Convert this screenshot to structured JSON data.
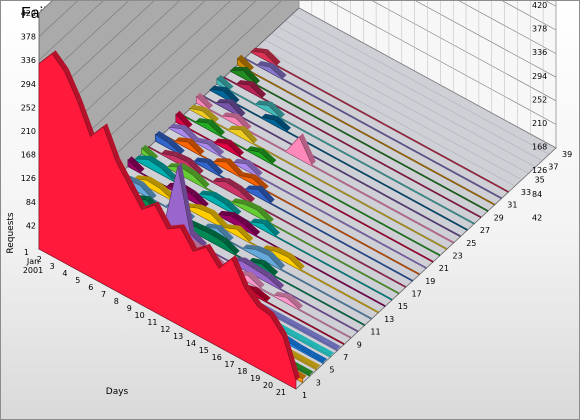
{
  "chart_data": {
    "type": "area",
    "title": "Failed URLs History",
    "xlabel": "Days",
    "ylabel": "Requests",
    "zlabel": "",
    "x_categories": [
      "1",
      "2",
      "3",
      "4",
      "5",
      "6",
      "7",
      "8",
      "9",
      "10",
      "11",
      "12",
      "13",
      "14",
      "15",
      "16",
      "17",
      "18",
      "19",
      "20",
      "21"
    ],
    "x_first_sublabels": [
      "Jan",
      "2001"
    ],
    "z_tick_labels": [
      "1",
      "3",
      "5",
      "7",
      "9",
      "11",
      "13",
      "15",
      "17",
      "19",
      "21",
      "23",
      "25",
      "27",
      "29",
      "31",
      "33",
      "35",
      "37",
      "39"
    ],
    "y_ticks": [
      42,
      84,
      126,
      168,
      210,
      252,
      294,
      336,
      378,
      420
    ],
    "ylim": [
      0,
      420
    ],
    "grid": true,
    "series_count": 39,
    "series": [
      {
        "values": [
          330,
          360,
          340,
          300,
          250,
          280,
          230,
          200,
          170,
          190,
          160,
          175,
          145,
          165,
          140,
          170,
          130,
          110,
          105,
          80,
          15
        ],
        "color": "#ff1a3c"
      },
      {
        "values": [
          24,
          22,
          20,
          19,
          18,
          17,
          16,
          15,
          14,
          13,
          12,
          12,
          11,
          10,
          10,
          9,
          9,
          8,
          8,
          7,
          6
        ],
        "color": "#ff9900"
      },
      {
        "values": [
          200,
          60,
          20,
          10,
          8,
          6,
          5,
          4,
          3,
          3,
          2,
          2,
          2,
          1,
          1,
          1,
          1,
          1,
          1,
          1,
          1
        ],
        "color": "#33b233"
      },
      {
        "values": [
          220,
          80,
          25,
          12,
          10,
          9,
          8,
          7,
          6,
          5,
          4,
          3,
          3,
          3,
          2,
          2,
          2,
          2,
          1,
          1,
          1
        ],
        "color": "#ffd21a"
      },
      {
        "values": [
          170,
          90,
          30,
          20,
          16,
          15,
          30,
          12,
          20,
          10,
          25,
          8,
          6,
          5,
          30,
          10,
          8,
          5,
          3,
          2,
          2
        ],
        "color": "#1a8cff"
      },
      {
        "values": [
          160,
          70,
          20,
          8,
          6,
          5,
          4,
          4,
          3,
          3,
          2,
          2,
          2,
          2,
          1,
          1,
          1,
          1,
          1,
          1,
          1
        ],
        "color": "#33ffff"
      },
      {
        "values": [
          150,
          30,
          8,
          4,
          3,
          3,
          2,
          2,
          2,
          1,
          1,
          1,
          1,
          1,
          1,
          1,
          1,
          1,
          1,
          1,
          1
        ],
        "color": "#9999ff"
      },
      {
        "values": [
          0,
          14,
          12,
          0,
          10,
          12,
          10,
          8,
          0,
          0,
          12,
          10,
          0,
          8,
          0,
          0,
          0,
          0,
          0,
          0,
          0
        ],
        "color": "#cc0033"
      },
      {
        "values": [
          0,
          0,
          12,
          12,
          10,
          0,
          0,
          14,
          12,
          10,
          0,
          0,
          12,
          0,
          0,
          10,
          0,
          0,
          0,
          0,
          0
        ],
        "color": "#ff99cc"
      },
      {
        "values": [
          12,
          14,
          0,
          0,
          12,
          10,
          120,
          12,
          0,
          0,
          0,
          14,
          12,
          10,
          0,
          0,
          0,
          0,
          0,
          0,
          0
        ],
        "color": "#9966cc"
      },
      {
        "values": [
          14,
          0,
          0,
          12,
          0,
          0,
          10,
          12,
          14,
          12,
          0,
          0,
          10,
          0,
          0,
          0,
          0,
          0,
          0,
          0,
          0
        ],
        "color": "#008855"
      },
      {
        "values": [
          0,
          12,
          14,
          0,
          0,
          10,
          0,
          0,
          12,
          0,
          0,
          12,
          14,
          0,
          0,
          0,
          0,
          0,
          0,
          0,
          0
        ],
        "color": "#66aadd"
      },
      {
        "values": [
          0,
          0,
          12,
          10,
          0,
          0,
          12,
          14,
          0,
          12,
          0,
          0,
          10,
          12,
          0,
          0,
          0,
          0,
          0,
          0,
          0
        ],
        "color": "#ffcc00"
      },
      {
        "values": [
          12,
          0,
          0,
          0,
          14,
          12,
          0,
          0,
          12,
          10,
          0,
          0,
          0,
          0,
          0,
          0,
          0,
          0,
          0,
          0,
          0
        ],
        "color": "#990066"
      },
      {
        "values": [
          0,
          14,
          12,
          0,
          0,
          0,
          12,
          10,
          0,
          0,
          12,
          0,
          0,
          0,
          0,
          0,
          0,
          0,
          0,
          0,
          0
        ],
        "color": "#00b0b0"
      },
      {
        "values": [
          10,
          0,
          0,
          14,
          12,
          0,
          0,
          0,
          10,
          12,
          0,
          0,
          0,
          0,
          0,
          0,
          0,
          0,
          0,
          0,
          0
        ],
        "color": "#66cc33"
      },
      {
        "values": [
          0,
          0,
          10,
          12,
          0,
          0,
          14,
          12,
          0,
          0,
          0,
          0,
          0,
          0,
          0,
          0,
          0,
          0,
          0,
          0,
          0
        ],
        "color": "#cc3366"
      },
      {
        "values": [
          12,
          10,
          0,
          0,
          12,
          0,
          0,
          0,
          14,
          0,
          0,
          0,
          0,
          0,
          0,
          0,
          0,
          0,
          0,
          0,
          0
        ],
        "color": "#3366cc"
      },
      {
        "values": [
          0,
          0,
          12,
          0,
          0,
          14,
          0,
          10,
          0,
          0,
          0,
          0,
          0,
          0,
          0,
          0,
          0,
          0,
          0,
          0,
          0
        ],
        "color": "#ff6600"
      },
      {
        "values": [
          0,
          12,
          0,
          10,
          0,
          0,
          12,
          0,
          0,
          0,
          0,
          0,
          0,
          0,
          0,
          0,
          0,
          0,
          0,
          0,
          0
        ],
        "color": "#aa88ee"
      },
      {
        "values": [
          14,
          0,
          0,
          0,
          12,
          0,
          0,
          0,
          0,
          0,
          0,
          0,
          0,
          0,
          0,
          0,
          0,
          0,
          0,
          0,
          0
        ],
        "color": "#dd0044"
      },
      {
        "values": [
          0,
          0,
          12,
          0,
          0,
          0,
          10,
          0,
          0,
          0,
          0,
          0,
          0,
          0,
          0,
          0,
          0,
          0,
          0,
          0,
          0
        ],
        "color": "#22aa22"
      },
      {
        "values": [
          0,
          10,
          0,
          0,
          14,
          0,
          0,
          0,
          0,
          0,
          0,
          0,
          0,
          0,
          0,
          0,
          0,
          0,
          0,
          0,
          0
        ],
        "color": "#eecc22"
      },
      {
        "values": [
          12,
          0,
          0,
          12,
          0,
          0,
          0,
          0,
          40,
          0,
          0,
          0,
          0,
          0,
          0,
          0,
          0,
          0,
          0,
          0,
          0
        ],
        "color": "#ff88bb"
      },
      {
        "values": [
          0,
          0,
          14,
          0,
          0,
          0,
          0,
          0,
          0,
          0,
          0,
          0,
          0,
          0,
          0,
          0,
          0,
          0,
          0,
          0,
          0
        ],
        "color": "#7755aa"
      },
      {
        "values": [
          0,
          12,
          0,
          0,
          0,
          10,
          0,
          0,
          0,
          0,
          0,
          0,
          0,
          0,
          0,
          0,
          0,
          0,
          0,
          0,
          0
        ],
        "color": "#006699"
      },
      {
        "values": [
          10,
          0,
          0,
          0,
          12,
          0,
          0,
          0,
          0,
          0,
          0,
          0,
          0,
          0,
          0,
          0,
          0,
          0,
          0,
          0,
          0
        ],
        "color": "#44bbbb"
      },
      {
        "values": [
          0,
          0,
          12,
          0,
          0,
          0,
          0,
          0,
          0,
          0,
          0,
          0,
          0,
          0,
          0,
          0,
          0,
          0,
          0,
          0,
          0
        ],
        "color": "#bb2255"
      },
      {
        "values": [
          0,
          14,
          0,
          0,
          0,
          0,
          0,
          0,
          0,
          0,
          0,
          0,
          0,
          0,
          0,
          0,
          0,
          0,
          0,
          0,
          0
        ],
        "color": "#228b22"
      },
      {
        "values": [
          12,
          0,
          0,
          0,
          0,
          0,
          0,
          0,
          0,
          0,
          0,
          0,
          0,
          0,
          0,
          0,
          0,
          0,
          0,
          0,
          0
        ],
        "color": "#cc8800"
      },
      {
        "values": [
          0,
          0,
          10,
          0,
          0,
          0,
          0,
          0,
          0,
          0,
          0,
          0,
          0,
          0,
          0,
          0,
          0,
          0,
          0,
          0,
          0
        ],
        "color": "#8877cc"
      },
      {
        "values": [
          0,
          12,
          0,
          0,
          0,
          0,
          0,
          0,
          0,
          0,
          0,
          0,
          0,
          0,
          0,
          0,
          0,
          0,
          0,
          0,
          0
        ],
        "color": "#dd3355"
      },
      {
        "values": [
          0,
          0,
          0,
          0,
          0,
          0,
          0,
          0,
          0,
          0,
          0,
          0,
          0,
          0,
          0,
          0,
          0,
          0,
          0,
          0,
          0
        ],
        "color": "#3399cc"
      },
      {
        "values": [
          0,
          0,
          0,
          0,
          0,
          0,
          0,
          0,
          0,
          0,
          0,
          0,
          0,
          0,
          0,
          0,
          0,
          0,
          0,
          0,
          0
        ],
        "color": "#66bb44"
      },
      {
        "values": [
          0,
          0,
          0,
          0,
          0,
          0,
          0,
          0,
          0,
          0,
          0,
          0,
          0,
          0,
          0,
          0,
          0,
          0,
          0,
          0,
          0
        ],
        "color": "#bb6622"
      },
      {
        "values": [
          0,
          0,
          0,
          0,
          0,
          0,
          0,
          0,
          0,
          0,
          0,
          0,
          0,
          0,
          0,
          0,
          0,
          0,
          0,
          0,
          0
        ],
        "color": "#ffaa33"
      },
      {
        "values": [
          0,
          0,
          0,
          0,
          0,
          0,
          0,
          0,
          0,
          0,
          0,
          0,
          0,
          0,
          0,
          0,
          0,
          0,
          0,
          0,
          0
        ],
        "color": "#5566dd"
      },
      {
        "values": [
          0,
          0,
          0,
          0,
          0,
          0,
          0,
          0,
          0,
          0,
          0,
          0,
          0,
          0,
          0,
          0,
          0,
          0,
          0,
          0,
          0
        ],
        "color": "#99aa33"
      },
      {
        "values": [
          0,
          0,
          0,
          0,
          0,
          0,
          0,
          0,
          0,
          0,
          0,
          0,
          0,
          0,
          0,
          0,
          0,
          0,
          0,
          0,
          0
        ],
        "color": "#ee7700"
      }
    ]
  }
}
